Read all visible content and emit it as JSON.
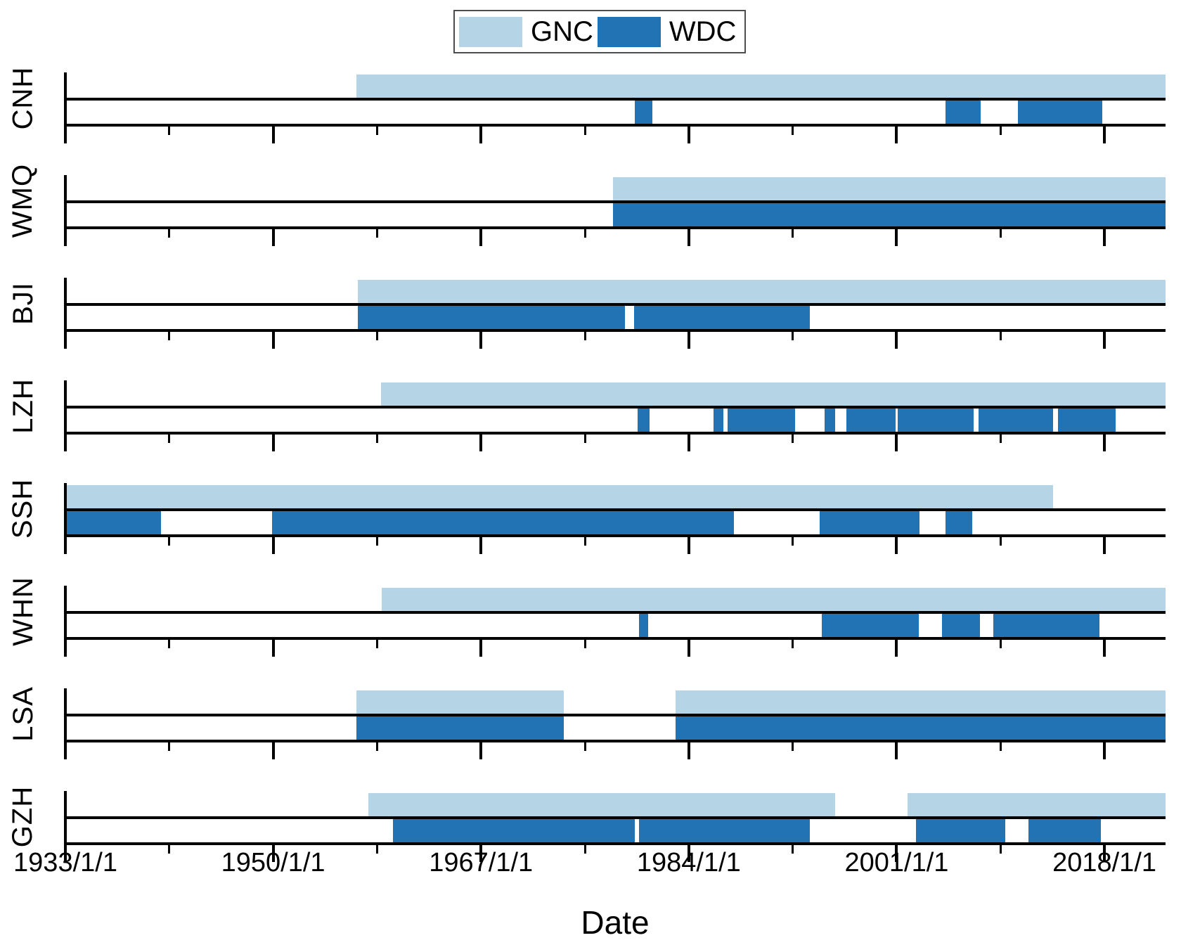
{
  "legend": {
    "items": [
      {
        "label": "GNC",
        "color": "#b5d4e6"
      },
      {
        "label": "WDC",
        "color": "#2173b4"
      }
    ]
  },
  "x_axis": {
    "title": "Date",
    "range_years": [
      1933,
      2023
    ],
    "major_ticks": [
      {
        "year": 1933,
        "label": "1933/1/1"
      },
      {
        "year": 1950,
        "label": "1950/1/1"
      },
      {
        "year": 1967,
        "label": "1967/1/1"
      },
      {
        "year": 1984,
        "label": "1984/1/1"
      },
      {
        "year": 2001,
        "label": "2001/1/1"
      },
      {
        "year": 2018,
        "label": "2018/1/1"
      }
    ],
    "minor_tick_years": [
      1941.5,
      1958.5,
      1975.5,
      1992.5,
      2009.5
    ]
  },
  "chart_data": {
    "type": "broken-bar-timeline",
    "unit": "decimal years",
    "series_names": [
      "GNC",
      "WDC"
    ],
    "stations": [
      {
        "name": "CNH",
        "GNC": [
          [
            1956.8,
            2023.0
          ]
        ],
        "WDC": [
          [
            1979.6,
            1981.0
          ],
          [
            2005.0,
            2007.9
          ],
          [
            2010.9,
            2017.8
          ]
        ]
      },
      {
        "name": "WMQ",
        "GNC": [
          [
            1977.8,
            2023.0
          ]
        ],
        "WDC": [
          [
            1977.8,
            2023.0
          ]
        ]
      },
      {
        "name": "BJI",
        "GNC": [
          [
            1956.9,
            2023.0
          ]
        ],
        "WDC": [
          [
            1956.9,
            1978.8
          ],
          [
            1979.5,
            1993.9
          ]
        ]
      },
      {
        "name": "LZH",
        "GNC": [
          [
            1958.8,
            2023.0
          ]
        ],
        "WDC": [
          [
            1979.8,
            1980.8
          ],
          [
            1986.0,
            1986.8
          ],
          [
            1987.2,
            1992.7
          ],
          [
            1995.1,
            1996.0
          ],
          [
            1996.9,
            2000.9
          ],
          [
            2001.1,
            2007.3
          ],
          [
            2007.7,
            2013.8
          ],
          [
            2014.2,
            2018.9
          ]
        ]
      },
      {
        "name": "SSH",
        "GNC": [
          [
            1933.0,
            2013.8
          ]
        ],
        "WDC": [
          [
            1933.0,
            1940.8
          ],
          [
            1949.9,
            1987.7
          ],
          [
            1994.7,
            2002.9
          ],
          [
            2005.0,
            2007.2
          ]
        ]
      },
      {
        "name": "WHN",
        "GNC": [
          [
            1958.9,
            2023.0
          ]
        ],
        "WDC": [
          [
            1979.9,
            1980.7
          ],
          [
            1994.9,
            2002.8
          ],
          [
            2004.7,
            2007.8
          ],
          [
            2008.9,
            2017.6
          ]
        ]
      },
      {
        "name": "LSA",
        "GNC": [
          [
            1956.8,
            1973.8
          ],
          [
            1982.9,
            2023.0
          ]
        ],
        "WDC": [
          [
            1956.8,
            1973.8
          ],
          [
            1982.9,
            2023.0
          ]
        ]
      },
      {
        "name": "GZH",
        "GNC": [
          [
            1957.8,
            1996.0
          ],
          [
            2001.9,
            2023.0
          ]
        ],
        "WDC": [
          [
            1959.8,
            1979.6
          ],
          [
            1979.9,
            1993.9
          ],
          [
            2002.6,
            2009.9
          ],
          [
            2011.8,
            2017.7
          ]
        ]
      }
    ]
  },
  "colors": {
    "GNC": "#b5d4e6",
    "WDC": "#2173b4",
    "axis": "#000000"
  }
}
